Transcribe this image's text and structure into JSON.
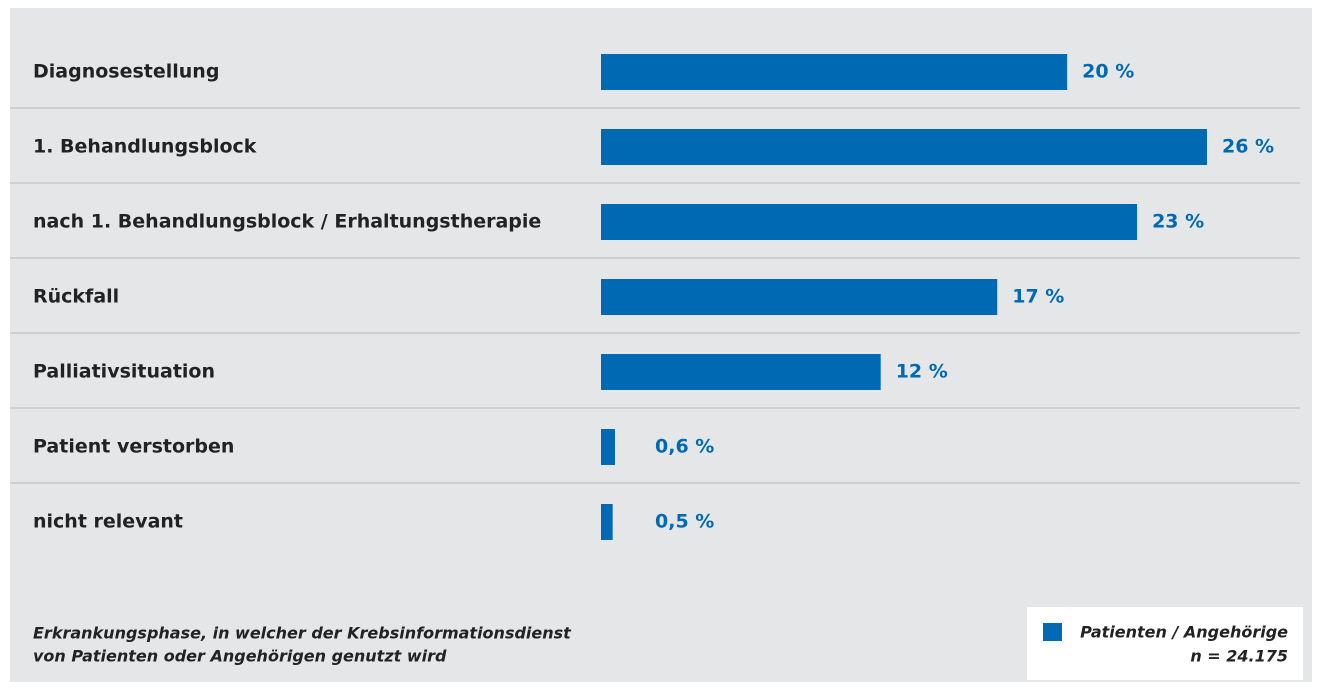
{
  "chart_data": {
    "type": "bar",
    "orientation": "horizontal",
    "categories": [
      "Diagnosestellung",
      "1. Behandlungsblock",
      "nach 1. Behandlungsblock  / Erhaltungstherapie",
      "Rückfall",
      "Palliativsituation",
      "Patient verstorben",
      "nicht relevant"
    ],
    "series": [
      {
        "name": "Patienten / Angehörige",
        "color": "#0069b4",
        "values": [
          20,
          26,
          23,
          17,
          12,
          0.6,
          0.5
        ],
        "value_labels": [
          "20 %",
          "26 %",
          "23 %",
          "17 %",
          "12 %",
          "0,6 %",
          "0,5 %"
        ]
      }
    ],
    "legend_note": "n = 24.175",
    "caption": [
      "Erkrankungsphase, in welcher der Krebsinformationsdienst",
      "von Patienten oder Angehörigen genutzt wird"
    ],
    "legend": "bottom-right"
  }
}
